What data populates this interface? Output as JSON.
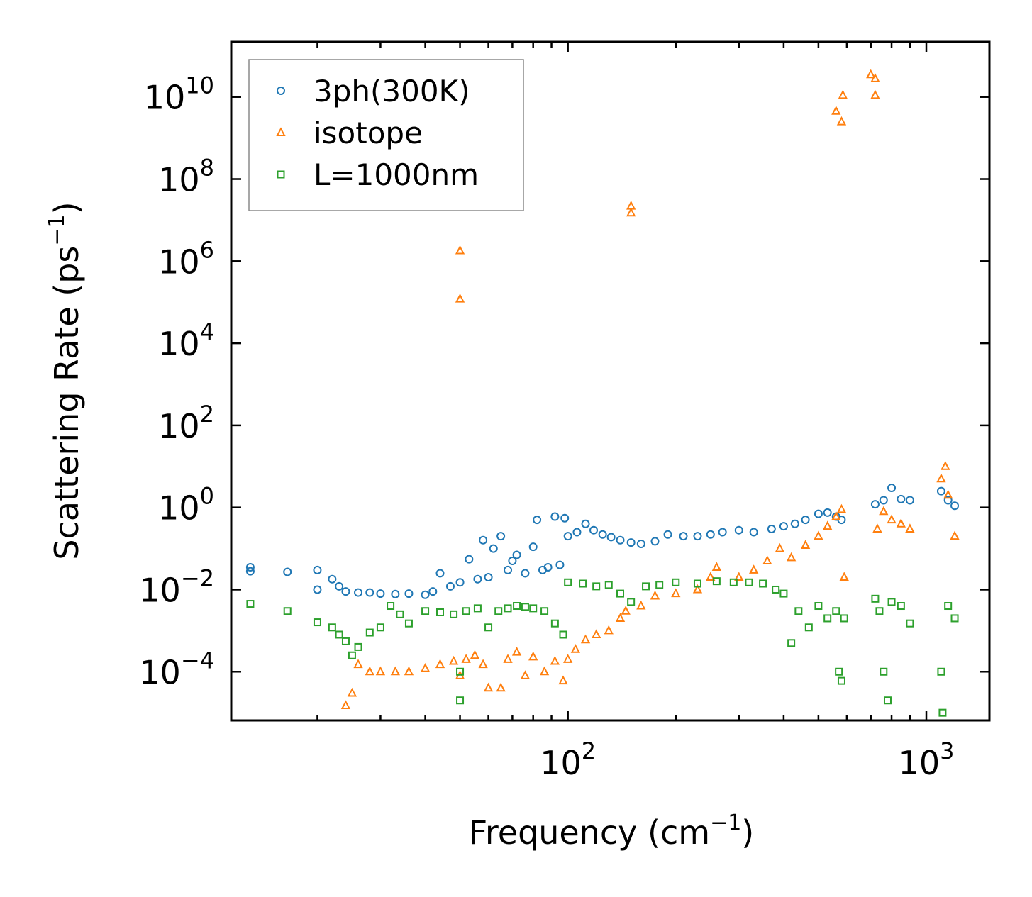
{
  "chart_data": {
    "type": "scatter",
    "title": "",
    "xlabel": "Frequency (cm",
    "xlabel_sup": "−1",
    "xlabel_end": ")",
    "ylabel": "Scattering Rate (ps",
    "ylabel_sup": "−1",
    "ylabel_end": ")",
    "xscale": "log",
    "yscale": "log",
    "xlim": [
      11.5,
      1500
    ],
    "ylim": [
      6.5e-06,
      220000000000
    ],
    "x_ticks": [
      {
        "value": 100,
        "base": "10",
        "exp": "2"
      },
      {
        "value": 1000,
        "base": "10",
        "exp": "3"
      }
    ],
    "y_ticks": [
      {
        "value": 0.0001,
        "base": "10",
        "exp": "−4"
      },
      {
        "value": 0.01,
        "base": "10",
        "exp": "−2"
      },
      {
        "value": 1,
        "base": "10",
        "exp": "0"
      },
      {
        "value": 100,
        "base": "10",
        "exp": "2"
      },
      {
        "value": 10000,
        "base": "10",
        "exp": "4"
      },
      {
        "value": 1000000,
        "base": "10",
        "exp": "6"
      },
      {
        "value": 100000000,
        "base": "10",
        "exp": "8"
      },
      {
        "value": 10000000000,
        "base": "10",
        "exp": "10"
      }
    ],
    "legend_position": "top-left",
    "series": [
      {
        "name": "3ph(300K)",
        "marker": "circle",
        "color": "#1f77b4",
        "points": [
          [
            13,
            0.035
          ],
          [
            13,
            0.028
          ],
          [
            16.5,
            0.027
          ],
          [
            20,
            0.03
          ],
          [
            20,
            0.01
          ],
          [
            22,
            0.018
          ],
          [
            23,
            0.012
          ],
          [
            24,
            0.009
          ],
          [
            26,
            0.0085
          ],
          [
            28,
            0.0085
          ],
          [
            30,
            0.008
          ],
          [
            33,
            0.0078
          ],
          [
            36,
            0.008
          ],
          [
            40,
            0.0075
          ],
          [
            42,
            0.009
          ],
          [
            44,
            0.025
          ],
          [
            47,
            0.012
          ],
          [
            50,
            0.015
          ],
          [
            53,
            0.055
          ],
          [
            56,
            0.018
          ],
          [
            58,
            0.16
          ],
          [
            60,
            0.02
          ],
          [
            62,
            0.1
          ],
          [
            65,
            0.2
          ],
          [
            68,
            0.03
          ],
          [
            70,
            0.05
          ],
          [
            72,
            0.07
          ],
          [
            76,
            0.025
          ],
          [
            80,
            0.11
          ],
          [
            82,
            0.5
          ],
          [
            85,
            0.03
          ],
          [
            88,
            0.035
          ],
          [
            92,
            0.6
          ],
          [
            95,
            0.04
          ],
          [
            98,
            0.55
          ],
          [
            100,
            0.2
          ],
          [
            106,
            0.25
          ],
          [
            112,
            0.4
          ],
          [
            118,
            0.28
          ],
          [
            125,
            0.22
          ],
          [
            132,
            0.19
          ],
          [
            140,
            0.16
          ],
          [
            150,
            0.14
          ],
          [
            160,
            0.13
          ],
          [
            175,
            0.15
          ],
          [
            190,
            0.22
          ],
          [
            210,
            0.2
          ],
          [
            230,
            0.2
          ],
          [
            250,
            0.22
          ],
          [
            270,
            0.25
          ],
          [
            300,
            0.28
          ],
          [
            330,
            0.25
          ],
          [
            370,
            0.3
          ],
          [
            400,
            0.35
          ],
          [
            430,
            0.4
          ],
          [
            460,
            0.5
          ],
          [
            500,
            0.7
          ],
          [
            530,
            0.75
          ],
          [
            560,
            0.6
          ],
          [
            580,
            0.5
          ],
          [
            720,
            1.2
          ],
          [
            760,
            1.5
          ],
          [
            800,
            3.0
          ],
          [
            850,
            1.6
          ],
          [
            900,
            1.5
          ],
          [
            1100,
            2.5
          ],
          [
            1150,
            1.5
          ],
          [
            1200,
            1.1
          ]
        ]
      },
      {
        "name": "isotope",
        "marker": "triangle",
        "color": "#ff7f0e",
        "points": [
          [
            24,
            1.5e-05
          ],
          [
            25,
            3e-05
          ],
          [
            26,
            0.00015
          ],
          [
            28,
            0.0001
          ],
          [
            30,
            0.0001
          ],
          [
            33,
            0.0001
          ],
          [
            36,
            0.0001
          ],
          [
            40,
            0.00012
          ],
          [
            44,
            0.00015
          ],
          [
            48,
            0.00018
          ],
          [
            50,
            8e-05
          ],
          [
            52,
            0.0002
          ],
          [
            55,
            0.00025
          ],
          [
            58,
            0.00015
          ],
          [
            60,
            4e-05
          ],
          [
            65,
            4e-05
          ],
          [
            68,
            0.0002
          ],
          [
            72,
            0.0003
          ],
          [
            76,
            8e-05
          ],
          [
            80,
            0.00023
          ],
          [
            86,
            0.0001
          ],
          [
            92,
            0.00018
          ],
          [
            97,
            6e-05
          ],
          [
            100,
            0.0002
          ],
          [
            105,
            0.00035
          ],
          [
            112,
            0.0006
          ],
          [
            120,
            0.0008
          ],
          [
            130,
            0.001
          ],
          [
            140,
            0.002
          ],
          [
            145,
            0.003
          ],
          [
            160,
            0.004
          ],
          [
            175,
            0.007
          ],
          [
            200,
            0.008
          ],
          [
            230,
            0.01
          ],
          [
            250,
            0.02
          ],
          [
            260,
            0.035
          ],
          [
            300,
            0.02
          ],
          [
            330,
            0.03
          ],
          [
            360,
            0.05
          ],
          [
            390,
            0.1
          ],
          [
            420,
            0.06
          ],
          [
            460,
            0.12
          ],
          [
            500,
            0.2
          ],
          [
            530,
            0.35
          ],
          [
            560,
            0.6
          ],
          [
            580,
            0.9
          ],
          [
            590,
            0.02
          ],
          [
            730,
            0.3
          ],
          [
            760,
            0.8
          ],
          [
            800,
            0.5
          ],
          [
            850,
            0.4
          ],
          [
            900,
            0.3
          ],
          [
            1100,
            5.0
          ],
          [
            1130,
            10.0
          ],
          [
            1150,
            2.0
          ],
          [
            1200,
            0.2
          ],
          [
            50,
            1800000
          ],
          [
            50,
            120000
          ],
          [
            150,
            22000000
          ],
          [
            150,
            15000000
          ],
          [
            560,
            4500000000
          ],
          [
            580,
            2500000000
          ],
          [
            585,
            11000000000
          ],
          [
            700,
            35000000000
          ],
          [
            720,
            28000000000
          ],
          [
            720,
            11000000000
          ]
        ]
      },
      {
        "name": "L=1000nm",
        "marker": "square",
        "color": "#2ca02c",
        "points": [
          [
            13,
            0.0045
          ],
          [
            16.5,
            0.003
          ],
          [
            20,
            0.0016
          ],
          [
            22,
            0.0012
          ],
          [
            23,
            0.0008
          ],
          [
            24,
            0.00055
          ],
          [
            25,
            0.00025
          ],
          [
            26,
            0.0004
          ],
          [
            28,
            0.0009
          ],
          [
            30,
            0.0012
          ],
          [
            32,
            0.004
          ],
          [
            34,
            0.0025
          ],
          [
            36,
            0.0015
          ],
          [
            40,
            0.003
          ],
          [
            44,
            0.0028
          ],
          [
            48,
            0.0025
          ],
          [
            50,
            0.0001
          ],
          [
            50,
            2e-05
          ],
          [
            52,
            0.003
          ],
          [
            56,
            0.0035
          ],
          [
            60,
            0.0012
          ],
          [
            64,
            0.003
          ],
          [
            68,
            0.0035
          ],
          [
            72,
            0.004
          ],
          [
            76,
            0.0038
          ],
          [
            80,
            0.0035
          ],
          [
            86,
            0.003
          ],
          [
            92,
            0.0015
          ],
          [
            97,
            0.0008
          ],
          [
            100,
            0.015
          ],
          [
            110,
            0.014
          ],
          [
            120,
            0.012
          ],
          [
            130,
            0.013
          ],
          [
            140,
            0.008
          ],
          [
            150,
            0.005
          ],
          [
            165,
            0.012
          ],
          [
            180,
            0.013
          ],
          [
            200,
            0.015
          ],
          [
            230,
            0.014
          ],
          [
            260,
            0.016
          ],
          [
            290,
            0.015
          ],
          [
            320,
            0.015
          ],
          [
            350,
            0.014
          ],
          [
            380,
            0.01
          ],
          [
            400,
            0.008
          ],
          [
            420,
            0.0005
          ],
          [
            440,
            0.003
          ],
          [
            470,
            0.0012
          ],
          [
            500,
            0.004
          ],
          [
            530,
            0.002
          ],
          [
            560,
            0.003
          ],
          [
            570,
            0.0001
          ],
          [
            580,
            6e-05
          ],
          [
            590,
            0.002
          ],
          [
            720,
            0.006
          ],
          [
            740,
            0.003
          ],
          [
            760,
            0.0001
          ],
          [
            780,
            2e-05
          ],
          [
            800,
            0.005
          ],
          [
            850,
            0.004
          ],
          [
            900,
            0.0015
          ],
          [
            1100,
            0.0001
          ],
          [
            1110,
            1e-05
          ],
          [
            1150,
            0.004
          ],
          [
            1200,
            0.002
          ]
        ]
      }
    ]
  }
}
